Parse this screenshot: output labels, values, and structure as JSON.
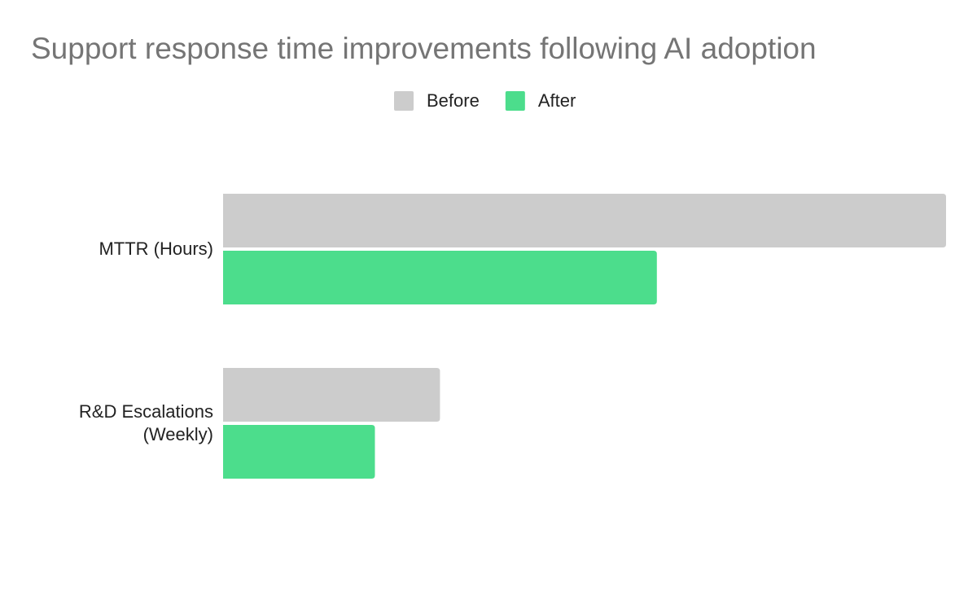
{
  "chart_data": {
    "type": "hbar",
    "title": "Support response time improvements following AI adoption",
    "categories": [
      "MTTR (Hours)",
      "R&D Escalations (Weekly)"
    ],
    "series": [
      {
        "name": "Before",
        "color": "#cccccc",
        "values": [
          10,
          3
        ]
      },
      {
        "name": "After",
        "color": "#4cdd8c",
        "values": [
          6,
          2.1
        ]
      }
    ],
    "xlim": [
      0,
      10
    ],
    "legend": "top"
  }
}
